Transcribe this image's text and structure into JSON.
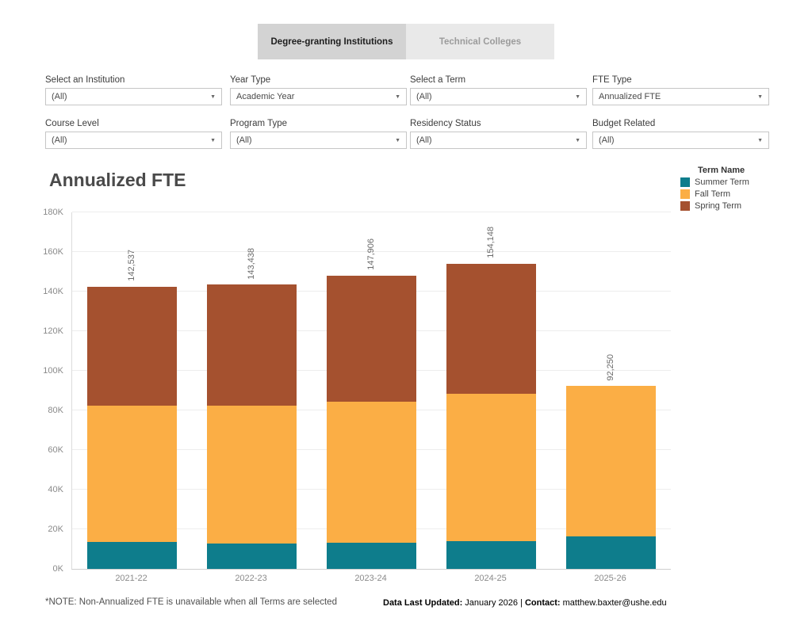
{
  "tabs": [
    {
      "label": "Degree-granting Institutions",
      "selected": true
    },
    {
      "label": "Technical Colleges",
      "selected": false
    }
  ],
  "filters": [
    {
      "label": "Select an Institution",
      "value": "(All)"
    },
    {
      "label": "Year Type",
      "value": "Academic Year"
    },
    {
      "label": "Select a Term",
      "value": "(All)"
    },
    {
      "label": "FTE Type",
      "value": "Annualized FTE"
    },
    {
      "label": "Course Level",
      "value": "(All)"
    },
    {
      "label": "Program Type",
      "value": "(All)"
    },
    {
      "label": "Residency Status",
      "value": "(All)"
    },
    {
      "label": "Budget Related",
      "value": "(All)"
    }
  ],
  "chart_data": {
    "type": "bar",
    "stacked": true,
    "title": "Annualized FTE",
    "categories": [
      "2021-22",
      "2022-23",
      "2023-24",
      "2024-25",
      "2025-26"
    ],
    "series": [
      {
        "name": "Summer Term",
        "color": "#0E7D8C",
        "values": [
          13500,
          13000,
          13200,
          14000,
          16250
        ]
      },
      {
        "name": "Fall Term",
        "color": "#FBAE45",
        "values": [
          68800,
          69500,
          71300,
          74500,
          76000
        ]
      },
      {
        "name": "Spring Term",
        "color": "#A5512F",
        "values": [
          60237,
          60938,
          63406,
          65648,
          0
        ]
      }
    ],
    "totals": [
      142537,
      143438,
      147906,
      154148,
      92250
    ],
    "total_labels": [
      "142,537",
      "143,438",
      "147,906",
      "154,148",
      "92,250"
    ],
    "ylim": [
      0,
      180000
    ],
    "ytick_step": 20000,
    "ytick_labels": [
      "0K",
      "20K",
      "40K",
      "60K",
      "80K",
      "100K",
      "120K",
      "140K",
      "160K",
      "180K"
    ],
    "legend_title": "Term Name",
    "legend_position": "top-right",
    "grid": true
  },
  "footer": {
    "note": "*NOTE: Non-Annualized FTE is unavailable when all Terms are selected",
    "updated_label": "Data Last Updated:",
    "updated_value": " January 2026 ",
    "separator": "| ",
    "contact_label": "Contact:",
    "contact_value": " matthew.baxter@ushe.edu"
  }
}
